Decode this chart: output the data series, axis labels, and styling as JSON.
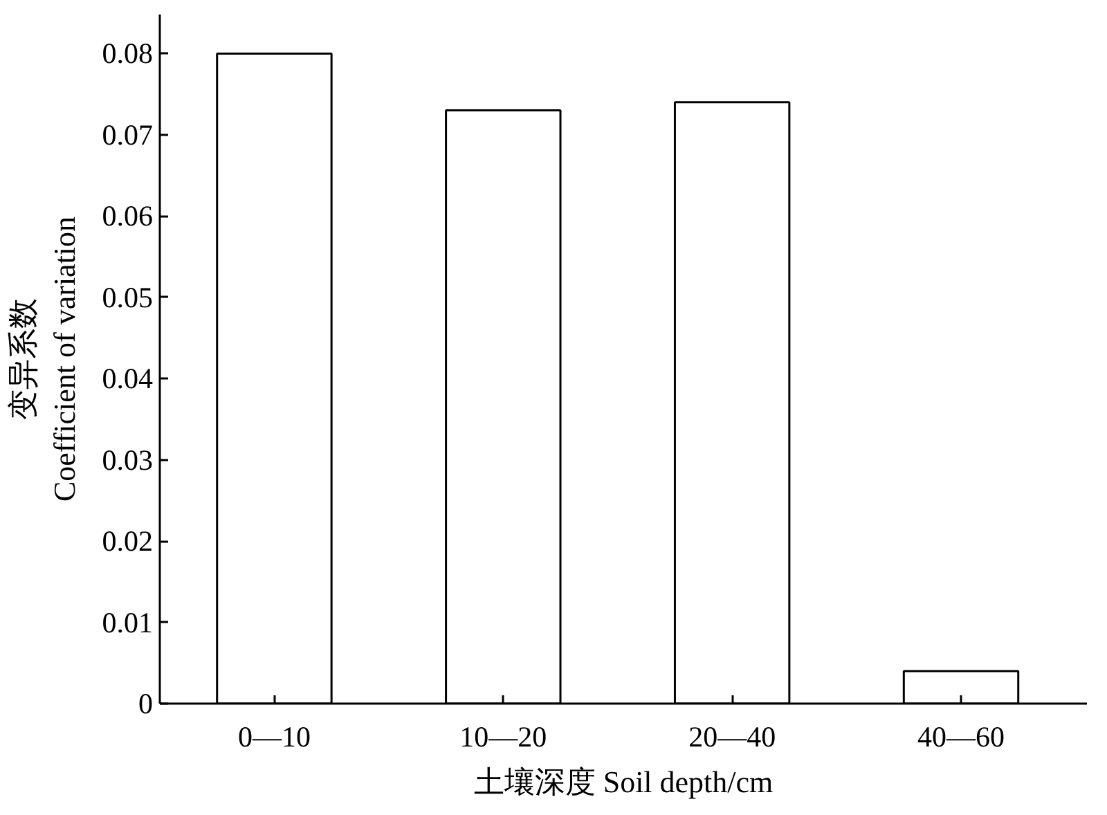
{
  "chart_data": {
    "type": "bar",
    "categories": [
      "0—10",
      "10—20",
      "20—40",
      "40—60"
    ],
    "values": [
      0.08,
      0.073,
      0.074,
      0.004
    ],
    "color": "#ffffff",
    "xlabel": "土壤深度 Soil depth/cm",
    "ylabel": "变异系数\nCoefficient of variation",
    "ylim": [
      0,
      0.08
    ],
    "yticks": [
      0,
      0.01,
      0.02,
      0.03,
      0.04,
      0.05,
      0.06,
      0.07,
      0.08
    ],
    "grid": false,
    "legend": false
  }
}
